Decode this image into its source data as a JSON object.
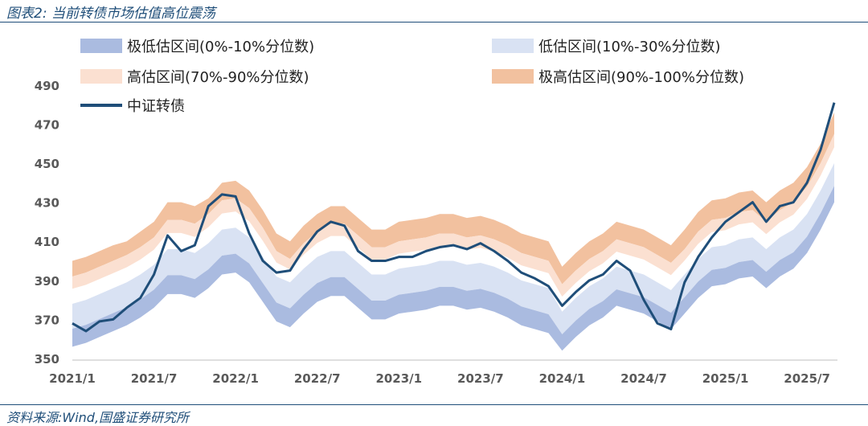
{
  "header": {
    "title": "图表2:  当前转债市场估值高位震荡"
  },
  "footer": {
    "source": "资料来源:Wind,国盛证券研究所"
  },
  "chart_data": {
    "type": "area",
    "title": "图表2:  当前转债市场估值高位震荡",
    "ylim": [
      350,
      492
    ],
    "yticks": [
      350,
      370,
      390,
      410,
      430,
      450,
      470,
      490
    ],
    "x_tick_labels": [
      "2021/1",
      "2021/7",
      "2022/1",
      "2022/7",
      "2023/1",
      "2023/7",
      "2024/1",
      "2024/7",
      "2025/1",
      "2025/7"
    ],
    "grid": false,
    "legend_position": "top",
    "colors": {
      "low_0_10": "#aabbe0",
      "low_10_30": "#d9e2f3",
      "high_70_90": "#fbe0d1",
      "high_90_100": "#f2c19f",
      "index": "#1f4e79"
    },
    "legend": [
      {
        "label": "极低估区间(0%-10%分位数)",
        "color": "#aabbe0",
        "kind": "area"
      },
      {
        "label": "低估区间(10%-30%分位数)",
        "color": "#d9e2f3",
        "kind": "area"
      },
      {
        "label": "高估区间(70%-90%分位数)",
        "color": "#fbe0d1",
        "kind": "area"
      },
      {
        "label": "极高估区间(90%-100%分位数)",
        "color": "#f2c19f",
        "kind": "area"
      },
      {
        "label": "中证转债",
        "color": "#1f4e79",
        "kind": "line"
      }
    ],
    "x": [
      "2021-01",
      "2021-02",
      "2021-03",
      "2021-04",
      "2021-05",
      "2021-06",
      "2021-07",
      "2021-08",
      "2021-09",
      "2021-10",
      "2021-11",
      "2021-12",
      "2022-01",
      "2022-02",
      "2022-03",
      "2022-04",
      "2022-05",
      "2022-06",
      "2022-07",
      "2022-08",
      "2022-09",
      "2022-10",
      "2022-11",
      "2022-12",
      "2023-01",
      "2023-02",
      "2023-03",
      "2023-04",
      "2023-05",
      "2023-06",
      "2023-07",
      "2023-08",
      "2023-09",
      "2023-10",
      "2023-11",
      "2023-12",
      "2024-01",
      "2024-02",
      "2024-03",
      "2024-04",
      "2024-05",
      "2024-06",
      "2024-07",
      "2024-08",
      "2024-09",
      "2024-10",
      "2024-11",
      "2024-12",
      "2025-01",
      "2025-02",
      "2025-03",
      "2025-04",
      "2025-05",
      "2025-06",
      "2025-07",
      "2025-08",
      "2025-09"
    ],
    "series": [
      {
        "name": "中证转债",
        "values": [
          368,
          364,
          369,
          370,
          376,
          381,
          393,
          413,
          405,
          408,
          428,
          434,
          433,
          414,
          400,
          394,
          395,
          406,
          415,
          420,
          418,
          405,
          400,
          400,
          402,
          402,
          405,
          407,
          408,
          406,
          409,
          405,
          400,
          394,
          391,
          387,
          377,
          384,
          390,
          393,
          400,
          395,
          380,
          368,
          365,
          389,
          402,
          412,
          420,
          425,
          430,
          420,
          428,
          430,
          440,
          457,
          481
        ]
      },
      {
        "name": "极高估区间(90%-100%分位数)",
        "values": [
          400,
          402,
          405,
          408,
          410,
          415,
          420,
          430,
          430,
          428,
          432,
          440,
          441,
          436,
          426,
          414,
          410,
          418,
          424,
          428,
          428,
          422,
          416,
          416,
          420,
          421,
          422,
          424,
          424,
          422,
          423,
          421,
          418,
          414,
          412,
          410,
          397,
          404,
          410,
          414,
          420,
          418,
          416,
          412,
          408,
          416,
          425,
          431,
          432,
          435,
          436,
          430,
          436,
          440,
          448,
          460,
          476
        ]
      },
      {
        "name": "高估区间(70%-90%分位数)",
        "values": [
          392,
          394,
          397,
          400,
          403,
          407,
          412,
          421,
          421,
          419,
          424,
          431,
          432,
          427,
          417,
          405,
          401,
          409,
          415,
          419,
          419,
          413,
          407,
          407,
          410,
          411,
          412,
          414,
          414,
          412,
          413,
          411,
          408,
          404,
          402,
          400,
          388,
          395,
          401,
          405,
          411,
          409,
          407,
          403,
          399,
          406,
          415,
          421,
          422,
          425,
          426,
          420,
          426,
          430,
          438,
          450,
          465
        ]
      },
      {
        "name": "低估区间(10%-30%分位数)",
        "values": [
          378,
          380,
          383,
          386,
          389,
          393,
          398,
          406,
          406,
          404,
          409,
          416,
          417,
          412,
          402,
          392,
          389,
          396,
          402,
          405,
          405,
          399,
          393,
          393,
          396,
          397,
          398,
          400,
          400,
          398,
          399,
          397,
          394,
          390,
          388,
          386,
          374,
          381,
          387,
          391,
          397,
          395,
          393,
          389,
          385,
          393,
          401,
          407,
          408,
          411,
          412,
          406,
          412,
          416,
          424,
          436,
          450
        ]
      },
      {
        "name": "极低估区间(0%-10%分位数)",
        "values": [
          356,
          358,
          361,
          364,
          367,
          371,
          376,
          383,
          383,
          381,
          386,
          393,
          394,
          389,
          379,
          369,
          366,
          373,
          379,
          382,
          382,
          376,
          370,
          370,
          373,
          374,
          375,
          377,
          377,
          375,
          376,
          374,
          371,
          367,
          365,
          363,
          354,
          361,
          367,
          371,
          377,
          375,
          373,
          369,
          365,
          373,
          381,
          387,
          388,
          391,
          392,
          386,
          392,
          396,
          404,
          416,
          430
        ]
      }
    ]
  }
}
